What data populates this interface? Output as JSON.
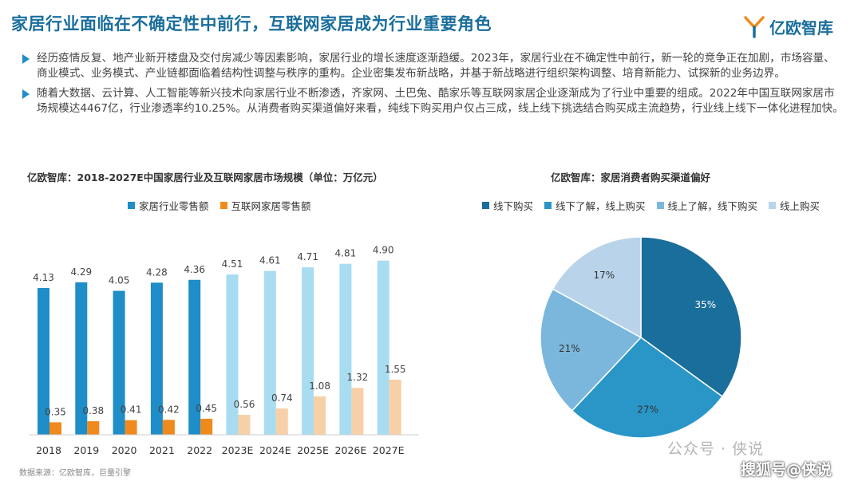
{
  "header": {
    "title": "家居行业面临在不确定性中前行，互联网家居成为行业重要角色",
    "logo_text": "亿欧智库"
  },
  "bullets": [
    "经历疫情反复、地产业新开楼盘及交付房减少等因素影响，家居行业的增长速度逐渐趋缓。2023年，家居行业在不确定性中前行，新一轮的竞争正在加剧，市场容量、商业模式、业务模式、产业链都面临着结构性调整与秩序的重构。企业密集发布新战略，并基于新战略进行组织架构调整、培育新能力、试探新的业务边界。",
    "随着大数据、云计算、人工智能等新兴技术向家居行业不断渗透，齐家网、土巴兔、酷家乐等互联网家居企业逐渐成为了行业中重要的组成。2022年中国互联网家居市场规模达4467亿，行业渗透率约10.25%。从消费者购买渠道偏好来看，纯线下购买用户仅占三成，线上线下挑选结合购买成主流趋势，行业线上线下一体化进程加快。"
  ],
  "source": "数据来源：亿欧智库，巨量引擎",
  "watermark": {
    "wechat": "公众号 · 侠说",
    "sohu": "搜狐号@侠说"
  },
  "colors": {
    "accent": "#1a6e9c",
    "actual_home": "#1f8dc7",
    "forecast_home": "#a8dcf0",
    "actual_internet": "#f08a1c",
    "forecast_internet": "#f8d0a8"
  },
  "chart_data": [
    {
      "type": "bar",
      "title": "亿欧智库：2018-2027E中国家居行业及互联网家居市场规模（单位：万亿元）",
      "categories": [
        "2018",
        "2019",
        "2020",
        "2021",
        "2022",
        "2023E",
        "2024E",
        "2025E",
        "2026E",
        "2027E"
      ],
      "series": [
        {
          "name": "家居行业零售额",
          "values": [
            4.13,
            4.29,
            4.05,
            4.28,
            4.36,
            4.51,
            4.61,
            4.71,
            4.81,
            4.9
          ]
        },
        {
          "name": "互联网家居零售额",
          "values": [
            0.35,
            0.38,
            0.41,
            0.42,
            0.45,
            0.56,
            0.74,
            1.08,
            1.32,
            1.55
          ]
        }
      ],
      "forecast_from_index": 5,
      "ylim": [
        0,
        5.5
      ],
      "grid": false,
      "legend_position": "top-left"
    },
    {
      "type": "pie",
      "title": "亿欧智库：家居消费者购买渠道偏好",
      "labels": [
        "线下购买",
        "线下了解，线上购买",
        "线上了解，线下购买",
        "线上购买"
      ],
      "values": [
        35,
        27,
        21,
        17
      ],
      "value_labels": [
        "35%",
        "27%",
        "21%",
        "17%"
      ],
      "colors": [
        "#1a6e9c",
        "#2a96c8",
        "#7bb7dc",
        "#b9d4ea"
      ],
      "legend_position": "top"
    }
  ]
}
